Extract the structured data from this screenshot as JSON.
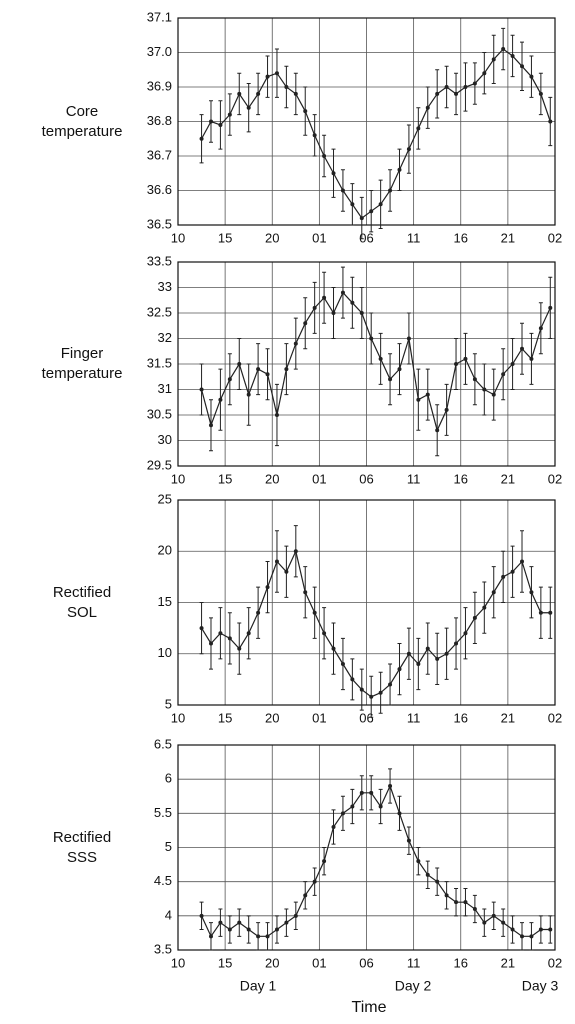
{
  "chart_data": [
    {
      "type": "line",
      "y_label": "Core temperature",
      "color": "#222",
      "x": [
        12.5,
        13.5,
        14.5,
        15.5,
        16.5,
        17.5,
        18.5,
        19.5,
        20.5,
        21.5,
        22.5,
        23.5,
        24.5,
        25.5,
        26.5,
        27.5,
        28.5,
        29.5,
        30.5,
        31.5,
        32.5,
        33.5,
        34.5,
        35.5,
        36.5,
        37.5,
        38.5,
        39.5,
        40.5,
        41.5,
        42.5,
        43.5,
        44.5,
        45.5,
        46.5,
        47.5,
        48.5,
        49.5
      ],
      "values": [
        36.75,
        36.8,
        36.79,
        36.82,
        36.88,
        36.84,
        36.88,
        36.93,
        36.94,
        36.9,
        36.88,
        36.83,
        36.76,
        36.7,
        36.65,
        36.6,
        36.56,
        36.52,
        36.54,
        36.56,
        36.6,
        36.66,
        36.72,
        36.78,
        36.84,
        36.88,
        36.9,
        36.88,
        36.9,
        36.91,
        36.94,
        36.98,
        37.01,
        36.99,
        36.96,
        36.93,
        36.88,
        36.8
      ],
      "errors": [
        0.07,
        0.06,
        0.07,
        0.06,
        0.06,
        0.07,
        0.06,
        0.06,
        0.07,
        0.06,
        0.06,
        0.07,
        0.06,
        0.06,
        0.07,
        0.06,
        0.06,
        0.06,
        0.06,
        0.07,
        0.06,
        0.06,
        0.07,
        0.06,
        0.06,
        0.07,
        0.06,
        0.06,
        0.07,
        0.06,
        0.06,
        0.07,
        0.06,
        0.06,
        0.07,
        0.06,
        0.06,
        0.07
      ],
      "xlim": [
        10,
        50
      ],
      "xticks": [
        10,
        15,
        20,
        {
          "value": 25,
          "label": "01"
        },
        {
          "value": 30,
          "label": "06"
        },
        {
          "value": 35,
          "label": "11"
        },
        {
          "value": 40,
          "label": "16"
        },
        {
          "value": 45,
          "label": "21"
        },
        {
          "value": 50,
          "label": "02"
        }
      ],
      "ylim": [
        36.5,
        37.1
      ],
      "yticks": [
        36.5,
        36.6,
        36.7,
        36.8,
        36.9,
        {
          "value": 37.0,
          "label": "37.0"
        },
        37.1
      ],
      "grid": true
    },
    {
      "type": "line",
      "y_label": "Finger temperature",
      "color": "#222",
      "x": [
        12.5,
        13.5,
        14.5,
        15.5,
        16.5,
        17.5,
        18.5,
        19.5,
        20.5,
        21.5,
        22.5,
        23.5,
        24.5,
        25.5,
        26.5,
        27.5,
        28.5,
        29.5,
        30.5,
        31.5,
        32.5,
        33.5,
        34.5,
        35.5,
        36.5,
        37.5,
        38.5,
        39.5,
        40.5,
        41.5,
        42.5,
        43.5,
        44.5,
        45.5,
        46.5,
        47.5,
        48.5,
        49.5
      ],
      "values": [
        31.0,
        30.3,
        30.8,
        31.2,
        31.5,
        30.9,
        31.4,
        31.3,
        30.5,
        31.4,
        31.9,
        32.3,
        32.6,
        32.8,
        32.5,
        32.9,
        32.7,
        32.5,
        32.0,
        31.6,
        31.2,
        31.4,
        32.0,
        30.8,
        30.9,
        30.2,
        30.6,
        31.5,
        31.6,
        31.2,
        31.0,
        30.9,
        31.3,
        31.5,
        31.8,
        31.6,
        32.2,
        32.6
      ],
      "errors": [
        0.5,
        0.5,
        0.6,
        0.5,
        0.5,
        0.6,
        0.5,
        0.5,
        0.6,
        0.5,
        0.5,
        0.5,
        0.5,
        0.5,
        0.5,
        0.5,
        0.5,
        0.5,
        0.5,
        0.5,
        0.5,
        0.5,
        0.5,
        0.6,
        0.5,
        0.5,
        0.5,
        0.5,
        0.5,
        0.5,
        0.5,
        0.5,
        0.5,
        0.5,
        0.5,
        0.5,
        0.5,
        0.6
      ],
      "xlim": [
        10,
        50
      ],
      "xticks": [
        10,
        15,
        20,
        {
          "value": 25,
          "label": "01"
        },
        {
          "value": 30,
          "label": "06"
        },
        {
          "value": 35,
          "label": "11"
        },
        {
          "value": 40,
          "label": "16"
        },
        {
          "value": 45,
          "label": "21"
        },
        {
          "value": 50,
          "label": "02"
        }
      ],
      "ylim": [
        29.5,
        33.5
      ],
      "yticks": [
        29.5,
        30,
        30.5,
        31,
        31.5,
        32,
        32.5,
        33,
        33.5
      ],
      "grid": true
    },
    {
      "type": "line",
      "y_label": "Rectified SOL",
      "color": "#222",
      "x": [
        12.5,
        13.5,
        14.5,
        15.5,
        16.5,
        17.5,
        18.5,
        19.5,
        20.5,
        21.5,
        22.5,
        23.5,
        24.5,
        25.5,
        26.5,
        27.5,
        28.5,
        29.5,
        30.5,
        31.5,
        32.5,
        33.5,
        34.5,
        35.5,
        36.5,
        37.5,
        38.5,
        39.5,
        40.5,
        41.5,
        42.5,
        43.5,
        44.5,
        45.5,
        46.5,
        47.5,
        48.5,
        49.5
      ],
      "values": [
        12.5,
        11,
        12,
        11.5,
        10.5,
        12,
        14,
        16.5,
        19,
        18,
        20,
        16,
        14,
        12,
        10.5,
        9,
        7.5,
        6.5,
        5.8,
        6.2,
        7,
        8.5,
        10,
        9,
        10.5,
        9.5,
        10,
        11,
        12,
        13.5,
        14.5,
        16,
        17.5,
        18,
        19,
        16,
        14,
        14
      ],
      "errors": [
        2.5,
        2.5,
        2.5,
        2.5,
        2.5,
        2.5,
        2.5,
        2.5,
        3,
        2.5,
        2.5,
        2.5,
        2.5,
        2.5,
        2.5,
        2.5,
        2,
        2,
        2,
        2,
        2,
        2.5,
        2.5,
        2.5,
        2.5,
        2.5,
        2.5,
        2.5,
        2.5,
        2.5,
        2.5,
        2.5,
        2.5,
        2.5,
        3,
        2.5,
        2.5,
        2.5
      ],
      "xlim": [
        10,
        50
      ],
      "xticks": [
        10,
        15,
        20,
        {
          "value": 25,
          "label": "01"
        },
        {
          "value": 30,
          "label": "06"
        },
        {
          "value": 35,
          "label": "11"
        },
        {
          "value": 40,
          "label": "16"
        },
        {
          "value": 45,
          "label": "21"
        },
        {
          "value": 50,
          "label": "02"
        }
      ],
      "ylim": [
        5,
        25
      ],
      "yticks": [
        5,
        10,
        15,
        20,
        25
      ],
      "grid": true
    },
    {
      "type": "line",
      "y_label": "Rectified SSS",
      "color": "#222",
      "x": [
        12.5,
        13.5,
        14.5,
        15.5,
        16.5,
        17.5,
        18.5,
        19.5,
        20.5,
        21.5,
        22.5,
        23.5,
        24.5,
        25.5,
        26.5,
        27.5,
        28.5,
        29.5,
        30.5,
        31.5,
        32.5,
        33.5,
        34.5,
        35.5,
        36.5,
        37.5,
        38.5,
        39.5,
        40.5,
        41.5,
        42.5,
        43.5,
        44.5,
        45.5,
        46.5,
        47.5,
        48.5,
        49.5
      ],
      "values": [
        4.0,
        3.7,
        3.9,
        3.8,
        3.9,
        3.8,
        3.7,
        3.7,
        3.8,
        3.9,
        4.0,
        4.3,
        4.5,
        4.8,
        5.3,
        5.5,
        5.6,
        5.8,
        5.8,
        5.6,
        5.9,
        5.5,
        5.1,
        4.8,
        4.6,
        4.5,
        4.3,
        4.2,
        4.2,
        4.1,
        3.9,
        4.0,
        3.9,
        3.8,
        3.7,
        3.7,
        3.8,
        3.8
      ],
      "errors": [
        0.2,
        0.2,
        0.2,
        0.2,
        0.2,
        0.2,
        0.2,
        0.2,
        0.2,
        0.2,
        0.2,
        0.2,
        0.2,
        0.2,
        0.25,
        0.25,
        0.25,
        0.25,
        0.25,
        0.25,
        0.25,
        0.25,
        0.2,
        0.2,
        0.2,
        0.2,
        0.2,
        0.2,
        0.2,
        0.2,
        0.2,
        0.2,
        0.2,
        0.2,
        0.2,
        0.2,
        0.2,
        0.2
      ],
      "xlim": [
        10,
        50
      ],
      "xticks": [
        10,
        15,
        20,
        {
          "value": 25,
          "label": "01"
        },
        {
          "value": 30,
          "label": "06"
        },
        {
          "value": 35,
          "label": "11"
        },
        {
          "value": 40,
          "label": "16"
        },
        {
          "value": 45,
          "label": "21"
        },
        {
          "value": 50,
          "label": "02"
        }
      ],
      "ylim": [
        3.5,
        6.5
      ],
      "yticks": [
        3.5,
        4,
        4.5,
        5,
        5.5,
        6,
        6.5
      ],
      "grid": true
    }
  ],
  "day_labels": [
    "Day 1",
    "Day 2",
    "Day 3"
  ],
  "x_label": "Time"
}
